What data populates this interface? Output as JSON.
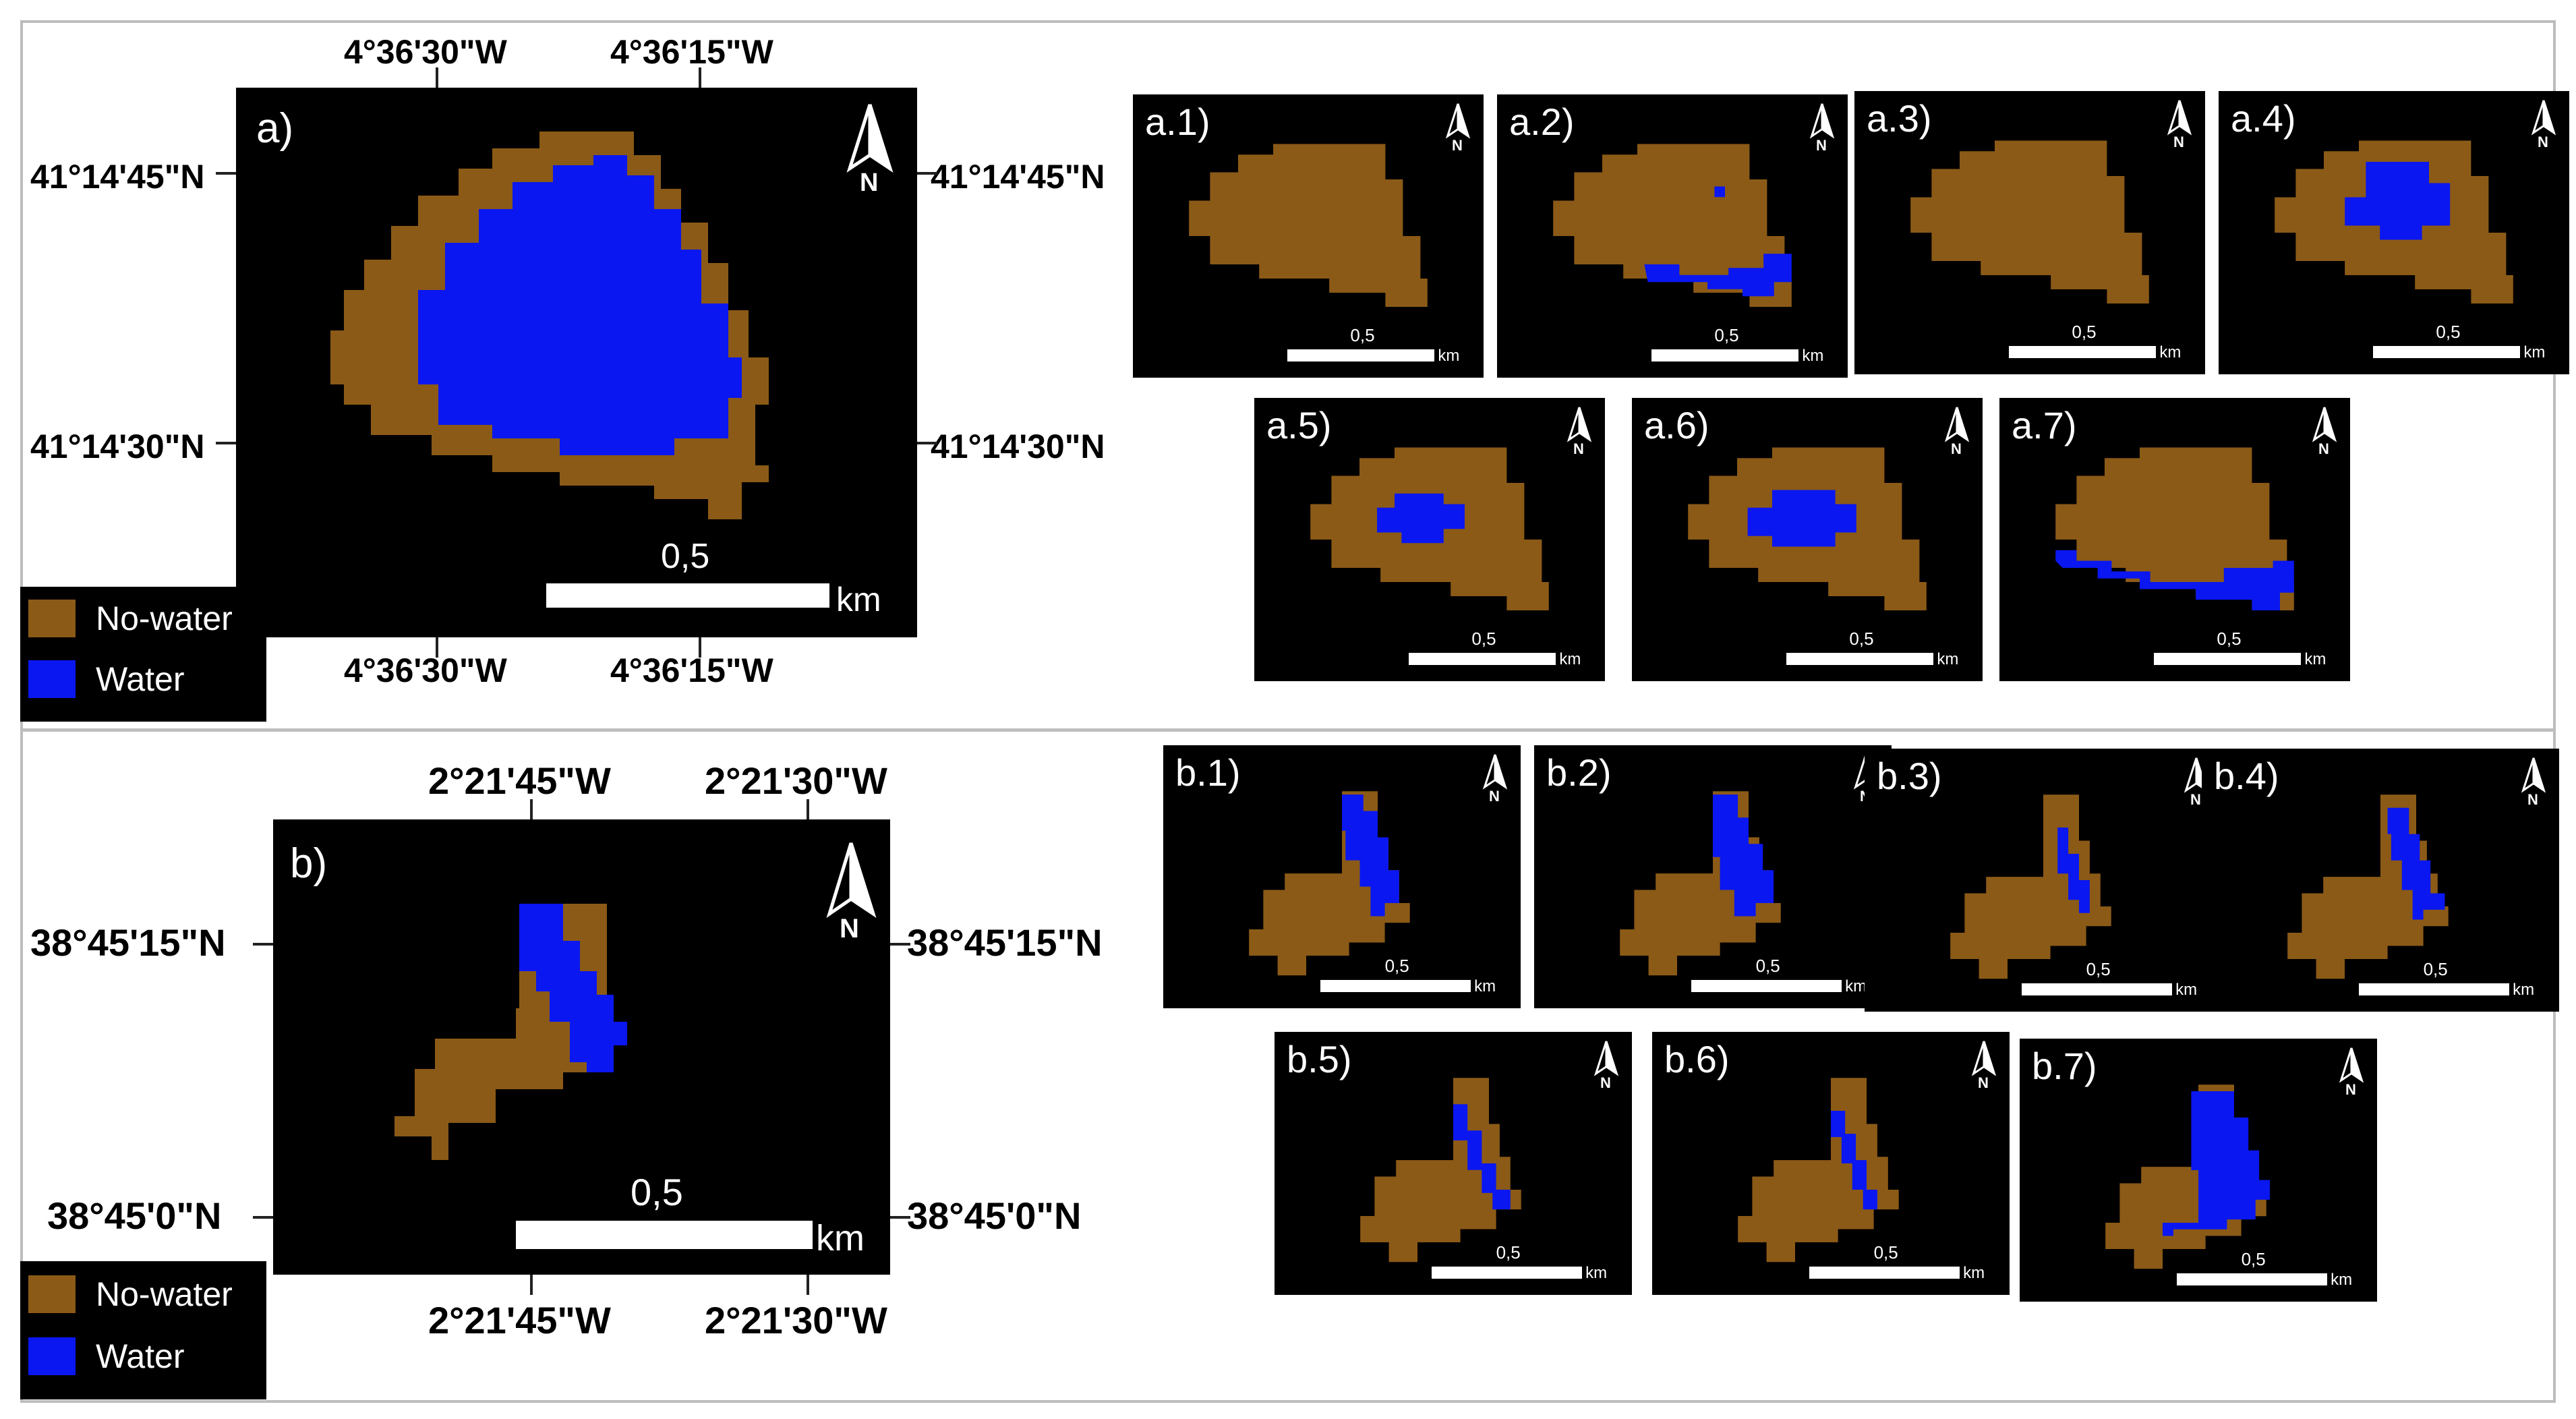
{
  "colors": {
    "no_water": "#8B5A17",
    "water": "#0A17F0",
    "background": "#000000"
  },
  "legend": {
    "no_water_label": "No-water",
    "water_label": "Water"
  },
  "north_symbol": "N",
  "scale": {
    "value": "0,5",
    "unit": "km"
  },
  "panel_a": {
    "label": "a)",
    "lon_top_left": "4°36'30\"W",
    "lon_top_right": "4°36'15\"W",
    "lon_bottom_left": "4°36'30\"W",
    "lon_bottom_right": "4°36'15\"W",
    "lat_left_top": "41°14'45\"N",
    "lat_left_bottom": "41°14'30\"N",
    "lat_right_top": "41°14'45\"N",
    "lat_right_bottom": "41°14'30\"N",
    "thumbnails": [
      "a.1)",
      "a.2)",
      "a.3)",
      "a.4)",
      "a.5)",
      "a.6)",
      "a.7)"
    ]
  },
  "panel_b": {
    "label": "b)",
    "lon_top_left": "2°21'45\"W",
    "lon_top_right": "2°21'30\"W",
    "lon_bottom_left": "2°21'45\"W",
    "lon_bottom_right": "2°21'30\"W",
    "lat_left_top": "38°45'15\"N",
    "lat_left_bottom": "38°45'0\"N",
    "lat_right_top": "38°45'15\"N",
    "lat_right_bottom": "38°45'0\"N",
    "thumbnails": [
      "b.1)",
      "b.2)",
      "b.3)",
      "b.4)",
      "b.5)",
      "b.6)",
      "b.7)"
    ]
  }
}
